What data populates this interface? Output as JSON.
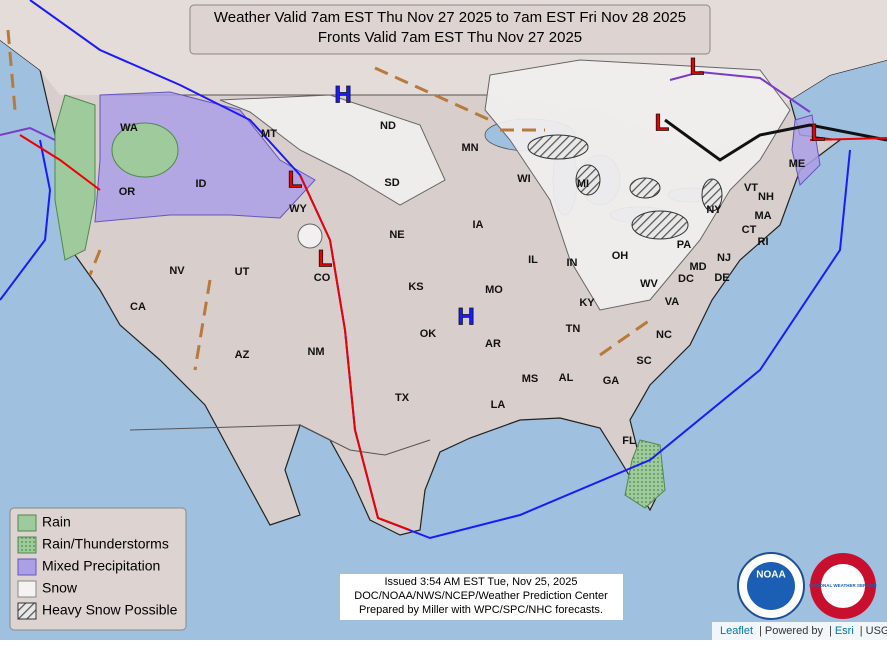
{
  "header": {
    "lines": [
      "Weather Valid 7am EST Thu Nov 27 2025 to 7am EST Fri Nov 28 2025",
      "Fronts Valid 7am EST Thu Nov 27 2025"
    ]
  },
  "legend": {
    "items": [
      "Rain",
      "Rain/Thunderstorms",
      "Mixed Precipitation",
      "Snow",
      "Heavy Snow Possible"
    ]
  },
  "states": [
    "WA",
    "OR",
    "ID",
    "MT",
    "WY",
    "ND",
    "SD",
    "NE",
    "KS",
    "OK",
    "TX",
    "MN",
    "IA",
    "MO",
    "AR",
    "LA",
    "WI",
    "IL",
    "MI",
    "IN",
    "OH",
    "KY",
    "TN",
    "MS",
    "AL",
    "GA",
    "FL",
    "SC",
    "NC",
    "VA",
    "WV",
    "PA",
    "NY",
    "VT",
    "NH",
    "ME",
    "MA",
    "CT",
    "RI",
    "NJ",
    "DE",
    "MD",
    "DC",
    "NV",
    "CA",
    "UT",
    "CO",
    "AZ",
    "NM"
  ],
  "pressure_centers": [
    {
      "label": "H"
    },
    {
      "label": "L"
    },
    {
      "label": "L"
    },
    {
      "label": "L"
    },
    {
      "label": "L"
    },
    {
      "label": "L"
    },
    {
      "label": "H"
    }
  ],
  "footer": {
    "lines": [
      "Issued  3:54 AM EST Tue, Nov 25, 2025",
      "DOC/NOAA/NWS/NCEP/Weather Prediction Center",
      "Prepared by Miller with WPC/SPC/NHC forecasts."
    ]
  },
  "logos": {
    "noaa": "NOAA",
    "nws": "NATIONAL WEATHER SERVICE"
  },
  "attribution": {
    "items": [
      "Leaflet",
      "Powered by",
      "Esri",
      "USGS"
    ],
    "separator": "|"
  }
}
